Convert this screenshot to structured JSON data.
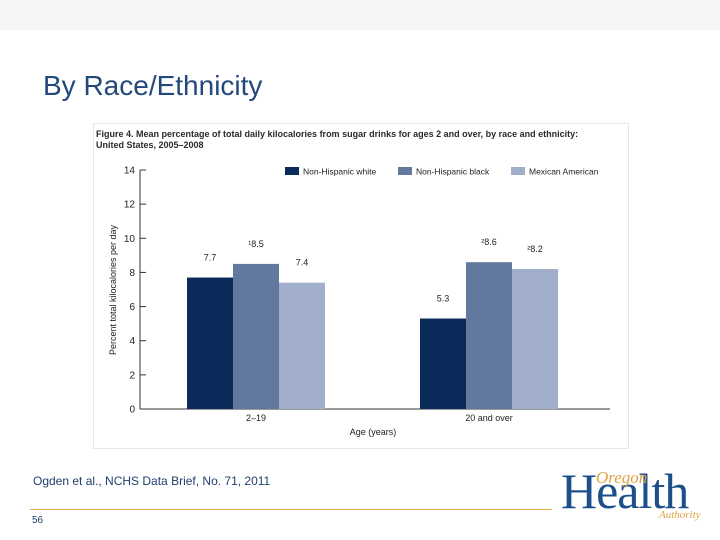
{
  "slide": {
    "title": "By Race/Ethnicity",
    "citation": "Ogden et al., NCHS Data Brief, No. 71, 2011",
    "page_number": "56"
  },
  "logo": {
    "word_main": "Health",
    "word_top": "Oregon",
    "word_bottom": "Authority"
  },
  "colors": {
    "title": "#23487a",
    "series_white": "#0a2a5a",
    "series_black": "#62789f",
    "series_mexican": "#a2afca",
    "footer_line": "#e3a84b"
  },
  "chart_data": {
    "type": "bar",
    "title": "Figure 4. Mean percentage of total daily kilocalories from sugar drinks for ages 2 and over, by race and ethnicity: United States, 2005–2008",
    "xlabel": "Age (years)",
    "ylabel": "Percent total kilocalories per day",
    "ylim": [
      0,
      14
    ],
    "yticks": [
      0,
      2,
      4,
      6,
      8,
      10,
      12,
      14
    ],
    "categories": [
      "2–19",
      "20 and over"
    ],
    "legend_position": "top-right",
    "series": [
      {
        "name": "Non-Hispanic white",
        "values": [
          7.7,
          5.3
        ],
        "labels": [
          "7.7",
          "5.3"
        ]
      },
      {
        "name": "Non-Hispanic black",
        "values": [
          8.5,
          8.6
        ],
        "labels": [
          "¹8.5",
          "²8.6"
        ]
      },
      {
        "name": "Mexican American",
        "values": [
          7.4,
          8.2
        ],
        "labels": [
          "7.4",
          "²8.2"
        ]
      }
    ]
  }
}
